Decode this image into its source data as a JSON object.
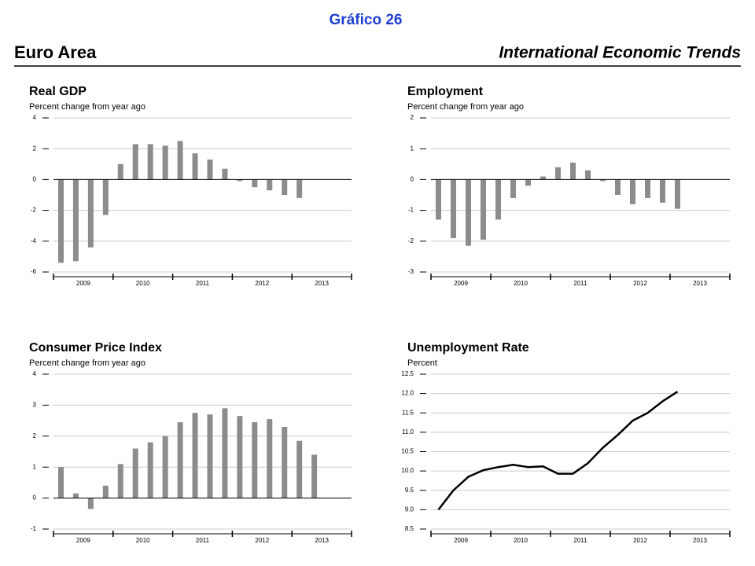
{
  "header": {
    "title": "Gráfico 26",
    "left": "Euro Area",
    "right": "International Economic Trends"
  },
  "chart_data": [
    {
      "type": "bar",
      "title": "Real GDP",
      "subtitle": "Percent change from year ago",
      "color": "#8c8c8c",
      "categories": [
        null,
        null,
        null,
        null,
        null,
        null,
        null,
        null,
        null,
        null,
        null,
        null,
        null,
        null,
        null,
        null,
        null
      ],
      "values": [
        -5.4,
        -5.3,
        -4.4,
        -2.3,
        1.0,
        2.3,
        2.3,
        2.2,
        2.5,
        1.7,
        1.3,
        0.7,
        -0.1,
        -0.5,
        -0.7,
        -1.0,
        -1.2
      ],
      "year_labels": [
        "2009",
        "2010",
        "2011",
        "2012",
        "2013"
      ],
      "ylim": [
        -6,
        4
      ],
      "yticks": [
        4,
        2,
        0,
        -2,
        -4,
        -6
      ],
      "grid": true
    },
    {
      "type": "bar",
      "title": "Employment",
      "subtitle": "Percent change from year ago",
      "color": "#8c8c8c",
      "categories": [
        null,
        null,
        null,
        null,
        null,
        null,
        null,
        null,
        null,
        null,
        null,
        null,
        null,
        null,
        null,
        null,
        null
      ],
      "values": [
        -1.3,
        -1.9,
        -2.15,
        -1.95,
        -1.3,
        -0.6,
        -0.2,
        0.1,
        0.4,
        0.55,
        0.3,
        -0.05,
        -0.5,
        -0.8,
        -0.6,
        -0.75,
        -0.95
      ],
      "year_labels": [
        "2009",
        "2010",
        "2011",
        "2012",
        "2013"
      ],
      "ylim": [
        -3,
        2
      ],
      "yticks": [
        2,
        1,
        0,
        -1,
        -2,
        -3
      ],
      "grid": true
    },
    {
      "type": "bar",
      "title": "Consumer Price Index",
      "subtitle": "Percent change from year ago",
      "color": "#8c8c8c",
      "categories": [
        null,
        null,
        null,
        null,
        null,
        null,
        null,
        null,
        null,
        null,
        null,
        null,
        null,
        null,
        null,
        null,
        null,
        null
      ],
      "values": [
        1.0,
        0.15,
        -0.35,
        0.4,
        1.1,
        1.6,
        1.8,
        2.0,
        2.45,
        2.75,
        2.7,
        2.9,
        2.65,
        2.45,
        2.55,
        2.3,
        1.85,
        1.4
      ],
      "year_labels": [
        "2009",
        "2010",
        "2011",
        "2012",
        "2013"
      ],
      "ylim": [
        -1,
        4
      ],
      "yticks": [
        4,
        3,
        2,
        1,
        0,
        -1
      ],
      "grid": true
    },
    {
      "type": "line",
      "title": "Unemployment Rate",
      "subtitle": "Percent",
      "color": "#000000",
      "categories": [
        null,
        null,
        null,
        null,
        null,
        null,
        null,
        null,
        null,
        null,
        null,
        null,
        null,
        null,
        null,
        null,
        null
      ],
      "values": [
        9.0,
        9.5,
        9.85,
        10.02,
        10.1,
        10.16,
        10.1,
        10.12,
        9.93,
        9.93,
        10.2,
        10.6,
        10.93,
        11.3,
        11.5,
        11.8,
        12.05
      ],
      "year_labels": [
        "2009",
        "2010",
        "2011",
        "2012",
        "2013"
      ],
      "ylim": [
        8.5,
        12.5
      ],
      "yticks": [
        12.5,
        {
          "value": 12,
          "label": "12.0"
        },
        11.5,
        {
          "value": 11,
          "label": "11.0"
        },
        10.5,
        {
          "value": 10,
          "label": "10.0"
        },
        9.5,
        {
          "value": 9,
          "label": "9.0"
        },
        8.5
      ],
      "grid": true
    }
  ]
}
